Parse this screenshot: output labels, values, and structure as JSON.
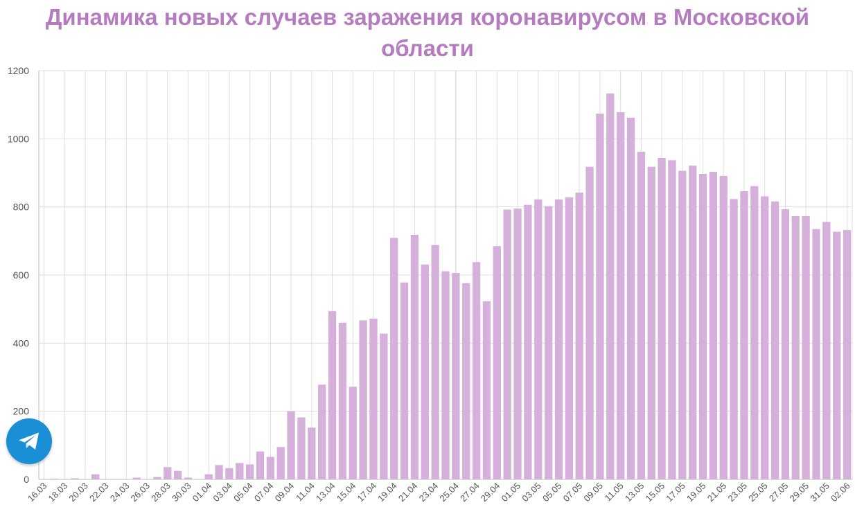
{
  "title": "Динамика новых случаев заражения коронавирусом в Московской области",
  "icons": {
    "telegram_button": "telegram-icon"
  },
  "colors": {
    "title": "#b57bbf",
    "bar": "#d4b0da",
    "grid": "#dddddd",
    "telegram": "#1b8fd6"
  },
  "chart_data": {
    "type": "bar",
    "title": "Динамика новых случаев заражения коронавирусом в Московской области",
    "xlabel": "",
    "ylabel": "",
    "ylim": [
      0,
      1200
    ],
    "yticks": [
      0,
      200,
      400,
      600,
      800,
      1000,
      1200
    ],
    "grid": true,
    "categories": [
      "16.03",
      "17.03",
      "18.03",
      "19.03",
      "20.03",
      "21.03",
      "22.03",
      "23.03",
      "24.03",
      "25.03",
      "26.03",
      "27.03",
      "28.03",
      "29.03",
      "30.03",
      "31.03",
      "01.04",
      "02.04",
      "03.04",
      "04.04",
      "05.04",
      "06.04",
      "07.04",
      "08.04",
      "09.04",
      "10.04",
      "11.04",
      "12.04",
      "13.04",
      "14.04",
      "15.04",
      "16.04",
      "17.04",
      "18.04",
      "19.04",
      "20.04",
      "21.04",
      "22.04",
      "23.04",
      "24.04",
      "25.04",
      "26.04",
      "27.04",
      "28.04",
      "29.04",
      "30.04",
      "01.05",
      "02.05",
      "03.05",
      "04.05",
      "05.05",
      "06.05",
      "07.05",
      "08.05",
      "09.05",
      "10.05",
      "11.05",
      "12.05",
      "13.05",
      "14.05",
      "15.05",
      "16.05",
      "17.05",
      "18.05",
      "19.05",
      "20.05",
      "21.05",
      "22.05",
      "23.05",
      "24.05",
      "25.05",
      "26.05",
      "27.05",
      "28.05",
      "29.05",
      "30.05",
      "31.05",
      "01.06",
      "02.06"
    ],
    "tick_labels": [
      "16.03",
      "18.03",
      "20.03",
      "22.03",
      "24.03",
      "26.03",
      "28.03",
      "30.03",
      "01.04",
      "03.04",
      "05.04",
      "07.04",
      "09.04",
      "11.04",
      "13.04",
      "15.04",
      "17.04",
      "19.04",
      "21.04",
      "23.04",
      "25.04",
      "27.04",
      "29.04",
      "01.05",
      "03.05",
      "05.05",
      "07.05",
      "09.05",
      "11.05",
      "13.05",
      "15.05",
      "17.05",
      "19.05",
      "21.05",
      "23.05",
      "25.05",
      "27.05",
      "29.05",
      "31.05",
      "02.06"
    ],
    "values": [
      1,
      2,
      0,
      3,
      0,
      15,
      0,
      0,
      0,
      5,
      0,
      7,
      36,
      25,
      5,
      0,
      15,
      42,
      33,
      48,
      44,
      82,
      66,
      95,
      200,
      182,
      152,
      278,
      494,
      460,
      272,
      467,
      472,
      428,
      709,
      578,
      718,
      631,
      688,
      611,
      606,
      576,
      638,
      523,
      685,
      792,
      795,
      806,
      822,
      802,
      822,
      828,
      842,
      918,
      1074,
      1133,
      1078,
      1062,
      962,
      918,
      944,
      937,
      906,
      921,
      897,
      903,
      891,
      823,
      846,
      861,
      831,
      816,
      793,
      773,
      773,
      735,
      756,
      727,
      732
    ]
  }
}
